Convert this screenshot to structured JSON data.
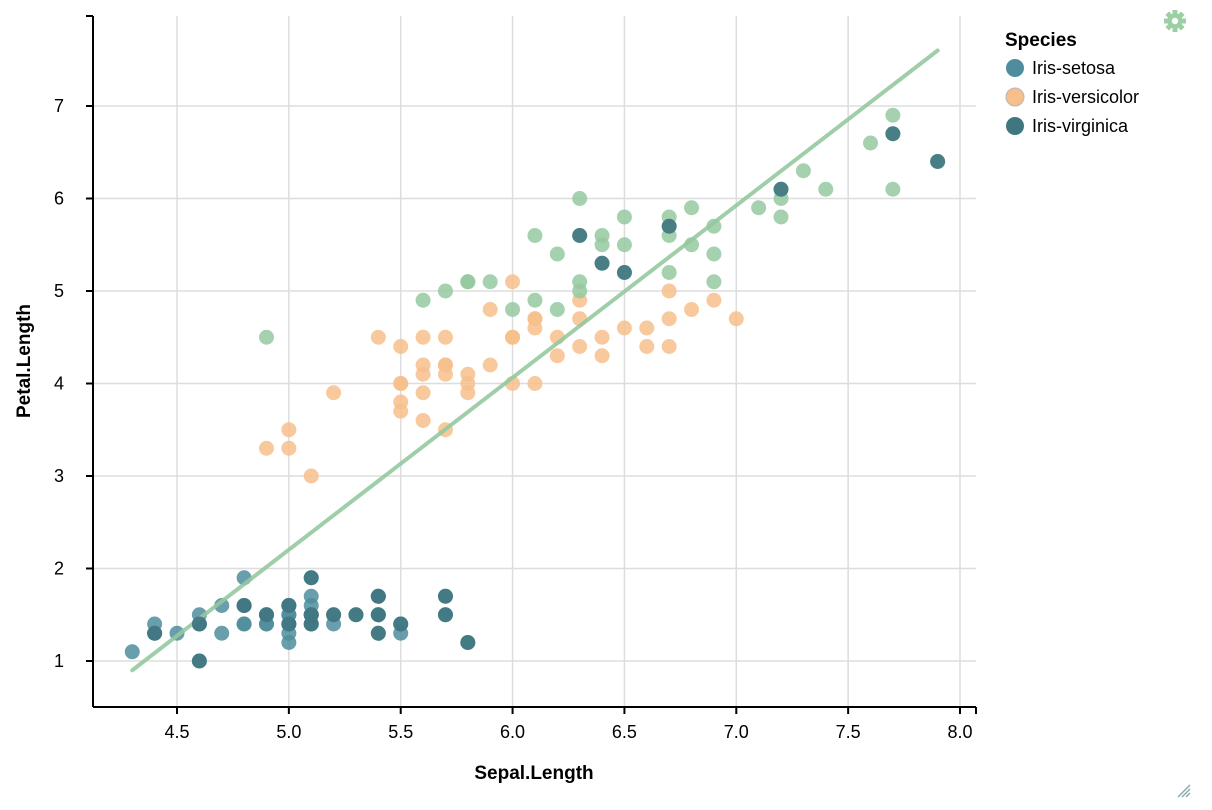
{
  "chart_data": {
    "type": "scatter",
    "xlabel": "Sepal.Length",
    "ylabel": "Petal.Length",
    "xlim": [
      4.1,
      8.1
    ],
    "ylim": [
      0.5,
      7.9
    ],
    "xticks": [
      "4.5",
      "5.0",
      "5.5",
      "6.0",
      "6.5",
      "7.0",
      "7.5",
      "8.0"
    ],
    "yticks": [
      "1",
      "2",
      "3",
      "4",
      "5",
      "6",
      "7"
    ],
    "grid": true,
    "legend": {
      "title": "Species",
      "position": "top-right",
      "entries": [
        "Iris-setosa",
        "Iris-versicolor",
        "Iris-virginica"
      ]
    },
    "colors": {
      "Iris-setosa": "#4f8d9e",
      "Iris-versicolor": "#f7bf8c",
      "Iris-virginica": "#95c9a0",
      "virginica_marker": "#3f7680",
      "trend": "#95c9a0",
      "grid": "#dddddd",
      "gear": "#9ccfa4"
    },
    "trendline": {
      "x": [
        4.3,
        7.9
      ],
      "y": [
        0.9,
        7.6
      ]
    },
    "series": [
      {
        "name": "Iris-setosa",
        "points": [
          [
            4.3,
            1.1
          ],
          [
            4.4,
            1.3
          ],
          [
            4.4,
            1.4
          ],
          [
            4.4,
            1.3
          ],
          [
            4.5,
            1.3
          ],
          [
            4.6,
            1.4
          ],
          [
            4.6,
            1.0
          ],
          [
            4.6,
            1.4
          ],
          [
            4.6,
            1.5
          ],
          [
            4.7,
            1.3
          ],
          [
            4.7,
            1.6
          ],
          [
            4.8,
            1.4
          ],
          [
            4.8,
            1.6
          ],
          [
            4.8,
            1.4
          ],
          [
            4.8,
            1.9
          ],
          [
            4.8,
            1.6
          ],
          [
            4.9,
            1.4
          ],
          [
            4.9,
            1.5
          ],
          [
            4.9,
            1.5
          ],
          [
            4.9,
            1.4
          ],
          [
            5.0,
            1.4
          ],
          [
            5.0,
            1.5
          ],
          [
            5.0,
            1.6
          ],
          [
            5.0,
            1.2
          ],
          [
            5.0,
            1.3
          ],
          [
            5.0,
            1.6
          ],
          [
            5.0,
            1.4
          ],
          [
            5.0,
            1.5
          ],
          [
            5.1,
            1.4
          ],
          [
            5.1,
            1.5
          ],
          [
            5.1,
            1.7
          ],
          [
            5.1,
            1.5
          ],
          [
            5.1,
            1.9
          ],
          [
            5.1,
            1.5
          ],
          [
            5.1,
            1.4
          ],
          [
            5.1,
            1.6
          ],
          [
            5.2,
            1.5
          ],
          [
            5.2,
            1.4
          ],
          [
            5.3,
            1.5
          ],
          [
            5.4,
            1.7
          ],
          [
            5.4,
            1.5
          ],
          [
            5.4,
            1.3
          ],
          [
            5.4,
            1.7
          ],
          [
            5.4,
            1.5
          ],
          [
            5.5,
            1.4
          ],
          [
            5.5,
            1.3
          ],
          [
            5.7,
            1.5
          ],
          [
            5.7,
            1.7
          ],
          [
            5.8,
            1.2
          ]
        ]
      },
      {
        "name": "Iris-versicolor",
        "points": [
          [
            4.9,
            3.3
          ],
          [
            5.0,
            3.3
          ],
          [
            5.0,
            3.5
          ],
          [
            5.1,
            3.0
          ],
          [
            5.2,
            3.9
          ],
          [
            5.4,
            4.5
          ],
          [
            5.5,
            4.0
          ],
          [
            5.5,
            3.8
          ],
          [
            5.5,
            4.4
          ],
          [
            5.5,
            3.7
          ],
          [
            5.5,
            4.0
          ],
          [
            5.6,
            4.2
          ],
          [
            5.6,
            3.9
          ],
          [
            5.6,
            4.5
          ],
          [
            5.6,
            3.6
          ],
          [
            5.6,
            4.1
          ],
          [
            5.7,
            4.2
          ],
          [
            5.7,
            4.5
          ],
          [
            5.7,
            3.5
          ],
          [
            5.7,
            4.1
          ],
          [
            5.7,
            4.2
          ],
          [
            5.8,
            4.1
          ],
          [
            5.8,
            4.0
          ],
          [
            5.8,
            3.9
          ],
          [
            5.9,
            4.8
          ],
          [
            5.9,
            4.2
          ],
          [
            6.0,
            4.5
          ],
          [
            6.0,
            4.0
          ],
          [
            6.0,
            5.1
          ],
          [
            6.0,
            4.5
          ],
          [
            6.1,
            4.7
          ],
          [
            6.1,
            4.0
          ],
          [
            6.1,
            4.7
          ],
          [
            6.1,
            4.6
          ],
          [
            6.2,
            4.5
          ],
          [
            6.2,
            4.3
          ],
          [
            6.3,
            4.7
          ],
          [
            6.3,
            4.9
          ],
          [
            6.3,
            4.4
          ],
          [
            6.4,
            4.5
          ],
          [
            6.4,
            4.3
          ],
          [
            6.5,
            4.6
          ],
          [
            6.6,
            4.6
          ],
          [
            6.6,
            4.4
          ],
          [
            6.7,
            4.7
          ],
          [
            6.7,
            4.4
          ],
          [
            6.7,
            5.0
          ],
          [
            6.8,
            4.8
          ],
          [
            6.9,
            4.9
          ],
          [
            7.0,
            4.7
          ]
        ]
      },
      {
        "name": "Iris-virginica",
        "points": [
          [
            4.9,
            4.5
          ],
          [
            5.6,
            4.9
          ],
          [
            5.7,
            5.0
          ],
          [
            5.8,
            5.1
          ],
          [
            5.8,
            5.1
          ],
          [
            5.9,
            5.1
          ],
          [
            6.0,
            4.8
          ],
          [
            6.1,
            5.6
          ],
          [
            6.1,
            4.9
          ],
          [
            6.2,
            5.4
          ],
          [
            6.2,
            4.8
          ],
          [
            6.3,
            6.0
          ],
          [
            6.3,
            5.6
          ],
          [
            6.3,
            5.1
          ],
          [
            6.3,
            5.0
          ],
          [
            6.4,
            5.6
          ],
          [
            6.4,
            5.3
          ],
          [
            6.4,
            5.5
          ],
          [
            6.5,
            5.8
          ],
          [
            6.5,
            5.5
          ],
          [
            6.5,
            5.2
          ],
          [
            6.7,
            5.8
          ],
          [
            6.7,
            5.7
          ],
          [
            6.7,
            5.6
          ],
          [
            6.7,
            5.2
          ],
          [
            6.8,
            5.9
          ],
          [
            6.8,
            5.5
          ],
          [
            6.9,
            5.7
          ],
          [
            6.9,
            5.4
          ],
          [
            6.9,
            5.1
          ],
          [
            7.1,
            5.9
          ],
          [
            7.2,
            6.1
          ],
          [
            7.2,
            6.0
          ],
          [
            7.2,
            5.8
          ],
          [
            7.3,
            6.3
          ],
          [
            7.4,
            6.1
          ],
          [
            7.6,
            6.6
          ],
          [
            7.7,
            6.7
          ],
          [
            7.7,
            6.9
          ],
          [
            7.7,
            6.1
          ],
          [
            7.9,
            6.4
          ]
        ]
      }
    ],
    "virginica_highlight": [
      [
        4.4,
        1.3
      ],
      [
        4.6,
        1.4
      ],
      [
        4.6,
        1.0
      ],
      [
        4.8,
        1.6
      ],
      [
        4.9,
        1.5
      ],
      [
        5.0,
        1.6
      ],
      [
        5.0,
        1.4
      ],
      [
        5.1,
        1.9
      ],
      [
        5.1,
        1.5
      ],
      [
        5.1,
        1.4
      ],
      [
        5.2,
        1.5
      ],
      [
        5.3,
        1.5
      ],
      [
        5.4,
        1.7
      ],
      [
        5.4,
        1.5
      ],
      [
        5.4,
        1.3
      ],
      [
        5.5,
        1.4
      ],
      [
        5.7,
        1.7
      ],
      [
        5.7,
        1.5
      ],
      [
        5.8,
        1.2
      ],
      [
        6.3,
        5.6
      ],
      [
        6.4,
        5.3
      ],
      [
        6.5,
        5.2
      ],
      [
        6.7,
        5.7
      ],
      [
        7.2,
        6.1
      ],
      [
        7.7,
        6.7
      ],
      [
        7.9,
        6.4
      ]
    ]
  },
  "icons": {
    "gear": "gear-icon",
    "resize": "resize-handle-icon"
  }
}
